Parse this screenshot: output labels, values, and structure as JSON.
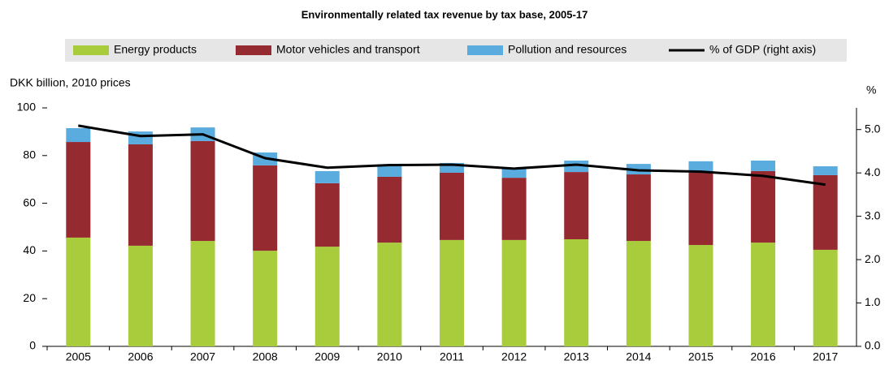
{
  "chart_data": {
    "type": "bar",
    "stacked": true,
    "title": "Environmentally related tax revenue by tax base, 2005-17",
    "y_label": "DKK billion, 2010 prices",
    "y2_label": "%",
    "categories": [
      "2005",
      "2006",
      "2007",
      "2008",
      "2009",
      "2010",
      "2011",
      "2012",
      "2013",
      "2014",
      "2015",
      "2016",
      "2017"
    ],
    "series": [
      {
        "name": "Energy products",
        "type": "bar",
        "color": "#a8cc3c",
        "values": [
          45.6,
          42.2,
          44.2,
          40.1,
          41.8,
          43.5,
          44.6,
          44.6,
          44.9,
          44.2,
          42.5,
          43.5,
          40.5
        ]
      },
      {
        "name": "Motor vehicles and transport",
        "type": "bar",
        "color": "#962a31",
        "values": [
          40.1,
          42.5,
          41.9,
          35.8,
          26.6,
          27.6,
          28.2,
          26.1,
          28.2,
          27.9,
          30.3,
          30.0,
          31.3
        ]
      },
      {
        "name": "Pollution and resources",
        "type": "bar",
        "color": "#5aabde",
        "values": [
          5.8,
          5.4,
          5.7,
          5.4,
          5.1,
          4.8,
          4.1,
          4.1,
          4.8,
          4.4,
          4.8,
          4.4,
          3.7
        ]
      },
      {
        "name": "% of GDP (right axis)",
        "type": "line",
        "axis": "y2",
        "color": "#000000",
        "values": [
          5.09,
          4.85,
          4.89,
          4.34,
          4.12,
          4.18,
          4.19,
          4.1,
          4.19,
          4.06,
          4.03,
          3.93,
          3.73
        ]
      }
    ],
    "ylim": [
      0,
      100
    ],
    "yticks": [
      0,
      20,
      40,
      60,
      80,
      100
    ],
    "y2lim": [
      0,
      5.5
    ],
    "y2ticks": [
      {
        "value": 0,
        "label": "0.0"
      },
      {
        "value": 1,
        "label": "1.0"
      },
      {
        "value": 2,
        "label": "2.0"
      },
      {
        "value": 3,
        "label": "3.0"
      },
      {
        "value": 4,
        "label": "4.0"
      },
      {
        "value": 5,
        "label": "5.0"
      }
    ],
    "grid": false,
    "legend": "top"
  }
}
